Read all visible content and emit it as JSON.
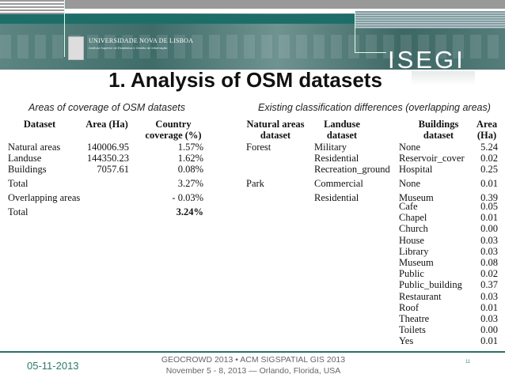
{
  "header": {
    "university": "UNIVERSIDADE NOVA DE LISBOA",
    "institute": "Instituto Superior de Estatística e Gestão de Informação",
    "watermark": "Instituto Superior de Estatística e Gestão de Informação",
    "logo": "ISEGI"
  },
  "title": "1. Analysis of OSM datasets",
  "left_table": {
    "caption": "Areas of coverage of OSM datasets",
    "headers": [
      "Dataset",
      "Area (Ha)",
      "Country\ncoverage (%)"
    ],
    "rows": [
      [
        "Natural areas",
        "140006.95",
        "1.57%"
      ],
      [
        "Landuse",
        "144350.23",
        "1.62%"
      ],
      [
        "Buildings",
        "7057.61",
        "0.08%"
      ],
      [
        "Total",
        "",
        "3.27%"
      ],
      [
        "Overlapping areas",
        "",
        "- 0.03%"
      ],
      [
        "Total",
        "",
        "3.24%"
      ]
    ]
  },
  "right_table": {
    "caption": "Existing classification differences (overlapping areas)",
    "headers": [
      "Natural areas\ndataset",
      "Landuse\ndataset",
      "Buildings\ndataset",
      "Area\n(Ha)"
    ],
    "rows": [
      [
        "Forest",
        "Military",
        "None",
        "5.24"
      ],
      [
        "",
        "Residential",
        "Reservoir_cover",
        "0.02"
      ],
      [
        "",
        "Recreation_ground",
        "Hospital",
        "0.25"
      ],
      [
        "Park",
        "Commercial",
        "None",
        "0.01"
      ],
      [
        "",
        "Residential",
        "Museum",
        "0.39"
      ],
      [
        "",
        "",
        "Cafe",
        "0.05"
      ],
      [
        "",
        "",
        "Chapel",
        "0.01"
      ],
      [
        "",
        "",
        "Church",
        "0.00"
      ],
      [
        "",
        "",
        "House",
        "0.03"
      ],
      [
        "",
        "",
        "Library",
        "0.03"
      ],
      [
        "",
        "",
        "Museum",
        "0.08"
      ],
      [
        "",
        "",
        "Public",
        "0.02"
      ],
      [
        "",
        "",
        "Public_building",
        "0.37"
      ],
      [
        "",
        "",
        "Restaurant",
        "0.03"
      ],
      [
        "",
        "",
        "Roof",
        "0.01"
      ],
      [
        "",
        "",
        "Theatre",
        "0.03"
      ],
      [
        "",
        "",
        "Toilets",
        "0.00"
      ],
      [
        "",
        "",
        "Yes",
        "0.01"
      ]
    ]
  },
  "footer": {
    "date": "05-11-2013",
    "line1": "GEOCROWD 2013 • ACM SIGSPATIAL GIS 2013",
    "line2": "November 5 - 8, 2013 — Orlando, Florida, USA",
    "page": "11"
  },
  "colors": {
    "teal": "#1d6e68",
    "date": "#2a7a6c"
  }
}
